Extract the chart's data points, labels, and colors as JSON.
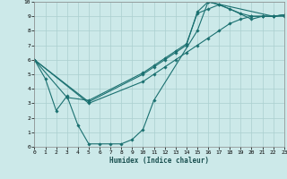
{
  "xlabel": "Humidex (Indice chaleur)",
  "ylabel": "",
  "xlim": [
    0,
    23
  ],
  "ylim": [
    0,
    10
  ],
  "xticks": [
    0,
    1,
    2,
    3,
    4,
    5,
    6,
    7,
    8,
    9,
    10,
    11,
    12,
    13,
    14,
    15,
    16,
    17,
    18,
    19,
    20,
    21,
    22,
    23
  ],
  "yticks": [
    0,
    1,
    2,
    3,
    4,
    5,
    6,
    7,
    8,
    9,
    10
  ],
  "bg_color": "#cce9e9",
  "grid_color": "#aacfcf",
  "line_color": "#1a7070",
  "line1_x": [
    0,
    1,
    2,
    3,
    4,
    5,
    6,
    7,
    8,
    9,
    10,
    11,
    15,
    16,
    22,
    23
  ],
  "line1_y": [
    6,
    4.7,
    2.5,
    3.5,
    1.5,
    0.2,
    0.2,
    0.2,
    0.2,
    0.5,
    1.2,
    3.2,
    8.0,
    10.0,
    9.0,
    9.0
  ],
  "line2_x": [
    0,
    3,
    5,
    10,
    11,
    12,
    13,
    14,
    15,
    16,
    17,
    19,
    20,
    21,
    22,
    23
  ],
  "line2_y": [
    6,
    3.4,
    3.2,
    5.1,
    5.6,
    6.1,
    6.6,
    7.1,
    9.2,
    9.5,
    9.8,
    9.2,
    9.0,
    9.0,
    9.0,
    9.1
  ],
  "line3_x": [
    0,
    5,
    10,
    11,
    12,
    13,
    14,
    15,
    16,
    17,
    18,
    20,
    21,
    22,
    23
  ],
  "line3_y": [
    6,
    3.1,
    5.0,
    5.5,
    6.0,
    6.5,
    7.0,
    9.3,
    10.0,
    9.8,
    9.5,
    8.8,
    9.0,
    9.0,
    9.1
  ],
  "line4_x": [
    0,
    5,
    10,
    11,
    12,
    13,
    14,
    15,
    16,
    17,
    18,
    19,
    20,
    21,
    22,
    23
  ],
  "line4_y": [
    6,
    3.0,
    4.5,
    5.0,
    5.5,
    6.0,
    6.5,
    7.0,
    7.5,
    8.0,
    8.5,
    8.8,
    9.0,
    9.0,
    9.0,
    9.1
  ],
  "marker": "D",
  "markersize": 1.8,
  "linewidth": 0.8,
  "tick_fontsize": 4.5,
  "xlabel_fontsize": 5.5
}
